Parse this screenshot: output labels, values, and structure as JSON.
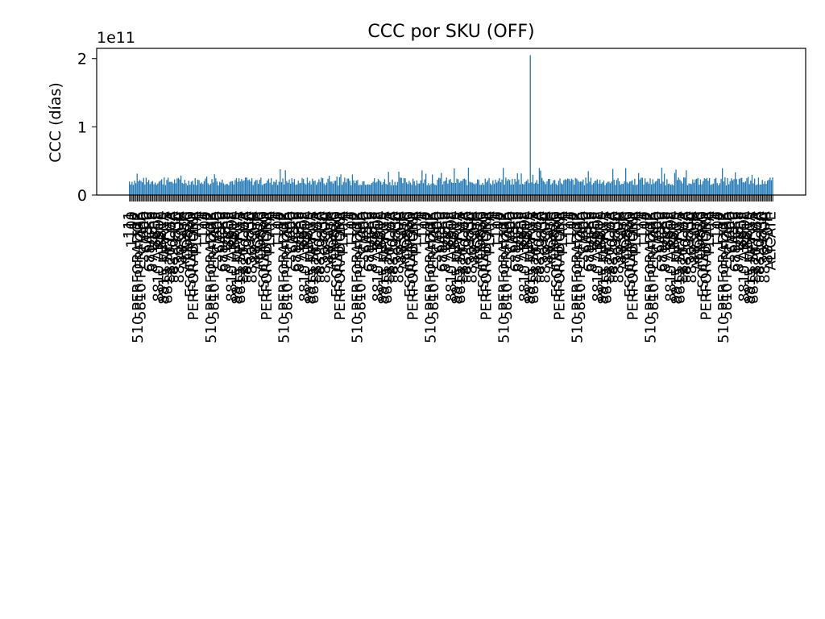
{
  "chart_data": {
    "type": "bar",
    "title": "CCC por SKU (OFF)",
    "ylabel": "CCC (días)",
    "xlabel": "",
    "y_multiplier_label": "1e11",
    "y_ticks": [
      0,
      1,
      2
    ],
    "ylim": [
      0,
      2.15
    ],
    "bar_color": "#1f77b4",
    "n_categories": 500,
    "outlier": {
      "index": 311,
      "value": 2.05
    },
    "value_baseline": 0.14,
    "value_spread": 0.12,
    "categories_sample": [
      "111",
      "1100",
      "12",
      "510 PERFORADOR",
      "5810 PERFORA",
      "600",
      "605-0",
      "688A-86",
      "8710B-8",
      "8805",
      "8810 ARBOL",
      "8810",
      "8815 MARCA",
      "8815 SET X3",
      "8820 CUA",
      "8820 MA",
      "8830",
      "8830 CUA",
      "8830 H",
      "ALICATE",
      "CD830",
      "ESQUINERO",
      "PERFORADORA",
      "PLAYA",
      "JJ"
    ],
    "visible_labels": [
      "510 PERFORADOR",
      "688A-86",
      "8710B-8",
      "8805",
      "8810 ARBOL",
      "8815 SET X3",
      "8820 CUA",
      "8830 CUA",
      "ESQUINERO",
      "PERFORADORA",
      "ALICATE"
    ]
  }
}
